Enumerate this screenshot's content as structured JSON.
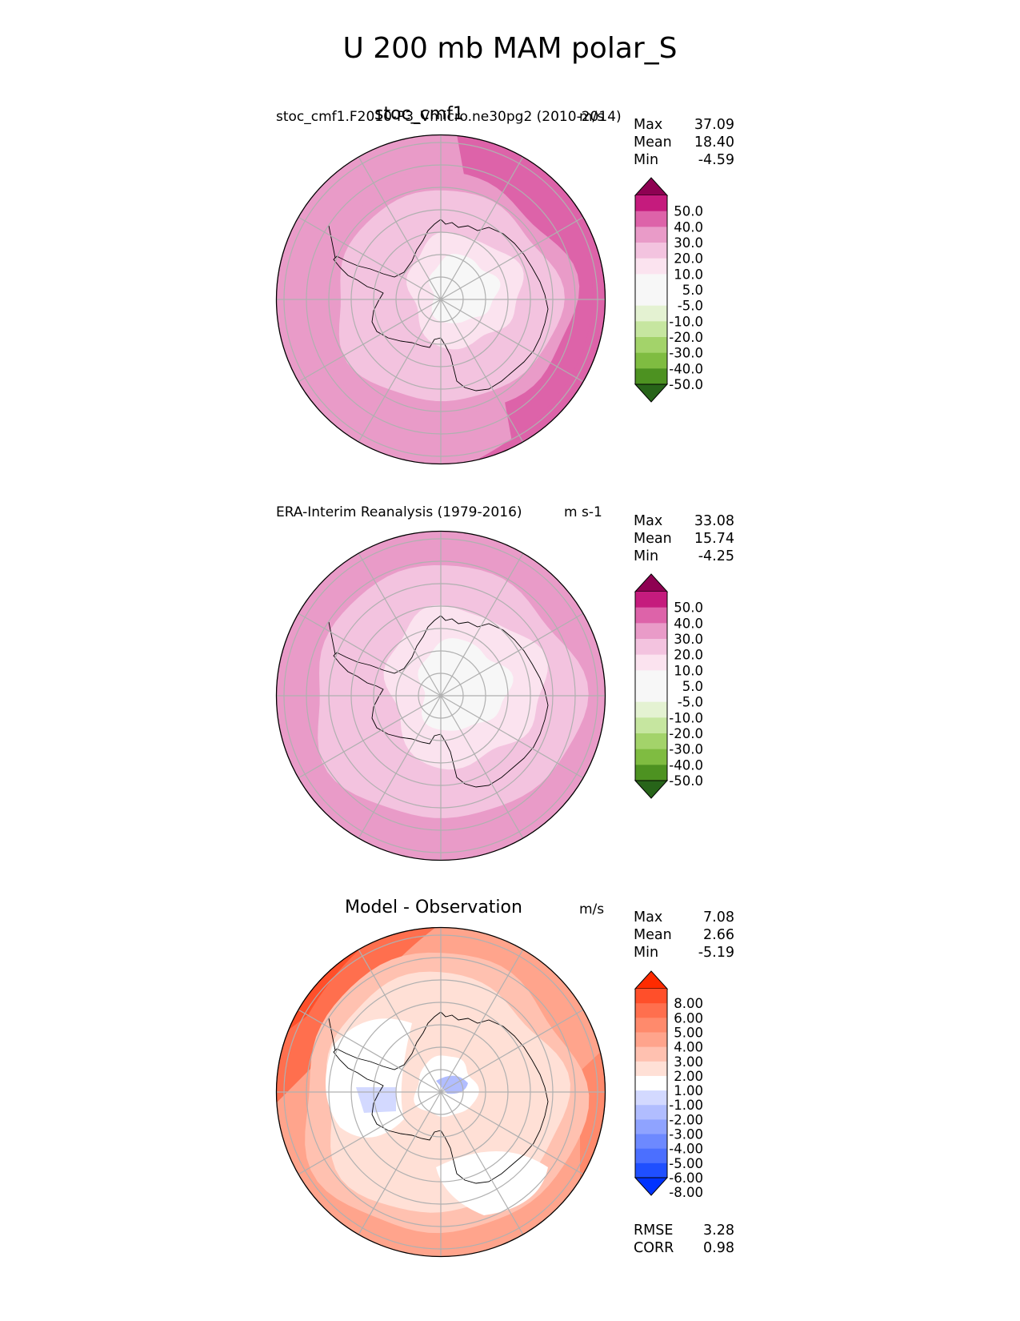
{
  "title": "U 200 mb MAM polar_S",
  "colors": {
    "pink_scale": [
      "#276419",
      "#4d9221",
      "#7fbc41",
      "#a3d36a",
      "#c6e6a0",
      "#e4f2d2",
      "#f7f7f7",
      "#f7f7f7",
      "#fbe3ef",
      "#f3c3df",
      "#e99bc8",
      "#dd63a9",
      "#c51b7d",
      "#8e0152"
    ],
    "diff_scale": [
      "#0033ff",
      "#1f4fff",
      "#4b6fff",
      "#6d89ff",
      "#8fa3ff",
      "#b1bdff",
      "#d3d9ff",
      "#ffffff",
      "#ffe0d6",
      "#ffc1b0",
      "#ffa48c",
      "#ff8a6c",
      "#ff6f4e",
      "#ff4f2a",
      "#ff2b00"
    ],
    "coastline": "#000000",
    "gridline": "#b0b0b0"
  },
  "chart_data": [
    {
      "type": "heatmap",
      "projection": "south-polar-stereographic",
      "panel_title": "stoc_cmf1",
      "left_label": "stoc_cmf1.F2010-P3_Vmicro.ne30pg2 (2010-2014)",
      "units": "m/s",
      "stats": {
        "Max": "37.09",
        "Mean": "18.40",
        "Min": "-4.59"
      },
      "stat_labels": [
        "Max",
        "Mean",
        "Min"
      ],
      "colorbar_ticks": [
        "50.0",
        "40.0",
        "30.0",
        "20.0",
        "10.0",
        "5.0",
        "-5.0",
        "-10.0",
        "-20.0",
        "-30.0",
        "-40.0",
        "-50.0"
      ],
      "colorbar_extend": "both",
      "field_bands": [
        {
          "value_range": [
            -5,
            5
          ],
          "color_index": 6
        },
        {
          "value_range": [
            5,
            10
          ],
          "color_index": 8
        },
        {
          "value_range": [
            10,
            20
          ],
          "color_index": 9
        },
        {
          "value_range": [
            20,
            30
          ],
          "color_index": 10
        },
        {
          "value_range": [
            30,
            40
          ],
          "color_index": 11
        }
      ]
    },
    {
      "type": "heatmap",
      "projection": "south-polar-stereographic",
      "panel_title": "",
      "left_label": "ERA-Interim Reanalysis (1979-2016)",
      "units": "m s-1",
      "stats": {
        "Max": "33.08",
        "Mean": "15.74",
        "Min": "-4.25"
      },
      "stat_labels": [
        "Max",
        "Mean",
        "Min"
      ],
      "colorbar_ticks": [
        "50.0",
        "40.0",
        "30.0",
        "20.0",
        "10.0",
        "5.0",
        "-5.0",
        "-10.0",
        "-20.0",
        "-30.0",
        "-40.0",
        "-50.0"
      ],
      "colorbar_extend": "both",
      "field_bands": [
        {
          "value_range": [
            -5,
            5
          ],
          "color_index": 6
        },
        {
          "value_range": [
            5,
            10
          ],
          "color_index": 8
        },
        {
          "value_range": [
            10,
            20
          ],
          "color_index": 9
        },
        {
          "value_range": [
            20,
            30
          ],
          "color_index": 10
        },
        {
          "value_range": [
            30,
            40
          ],
          "color_index": 11
        }
      ]
    },
    {
      "type": "heatmap",
      "projection": "south-polar-stereographic",
      "panel_title": "Model - Observation",
      "left_label": "",
      "units": "m/s",
      "stats": {
        "Max": "7.08",
        "Mean": "2.66",
        "Min": "-5.19"
      },
      "stat_labels": [
        "Max",
        "Mean",
        "Min"
      ],
      "colorbar_ticks": [
        "8.00",
        "6.00",
        "5.00",
        "4.00",
        "3.00",
        "2.00",
        "1.00",
        "-1.00",
        "-2.00",
        "-3.00",
        "-4.00",
        "-5.00",
        "-6.00",
        "-8.00"
      ],
      "colorbar_extend": "both",
      "extra_stats": {
        "RMSE": "3.28",
        "CORR": "0.98"
      },
      "extra_stat_labels": [
        "RMSE",
        "CORR"
      ]
    }
  ]
}
